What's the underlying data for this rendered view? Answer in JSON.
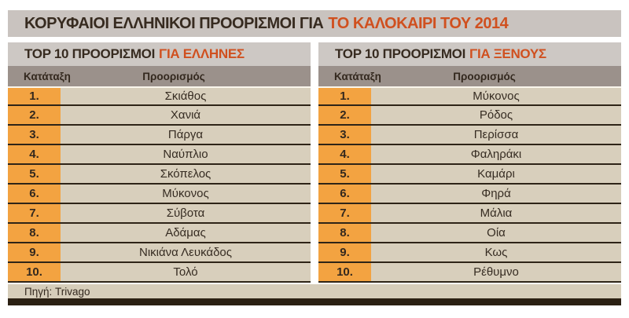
{
  "header": {
    "title_main": "ΚΟΡΥΦΑΙΟΙ ΕΛΛΗΝΙΚΟΙ ΠΡΟΟΡΙΣΜΟΙ ΓΙΑ",
    "title_accent": "ΤΟ ΚΑΛΟΚΑΙΡΙ ΤΟΥ 2014"
  },
  "tables": [
    {
      "heading_main": "TOP 10 ΠΡΟΟΡΙΣΜΟΙ",
      "heading_accent": "ΓΙΑ ΕΛΛΗΝΕΣ",
      "col_rank": "Κατάταξη",
      "col_destination": "Προορισμός",
      "rows": [
        {
          "rank": "1.",
          "destination": "Σκιάθος"
        },
        {
          "rank": "2.",
          "destination": "Χανιά"
        },
        {
          "rank": "3.",
          "destination": "Πάργα"
        },
        {
          "rank": "4.",
          "destination": "Ναύπλιο"
        },
        {
          "rank": "5.",
          "destination": "Σκόπελος"
        },
        {
          "rank": "6.",
          "destination": "Μύκονος"
        },
        {
          "rank": "7.",
          "destination": "Σύβοτα"
        },
        {
          "rank": "8.",
          "destination": "Αδάμας"
        },
        {
          "rank": "9.",
          "destination": "Νικιάνα Λευκάδος"
        },
        {
          "rank": "10.",
          "destination": "Τολό"
        }
      ]
    },
    {
      "heading_main": "TOP 10 ΠΡΟΟΡΙΣΜΟΙ",
      "heading_accent": "ΓΙΑ ΞΕΝΟΥΣ",
      "col_rank": "Κατάταξη",
      "col_destination": "Προορισμός",
      "rows": [
        {
          "rank": "1.",
          "destination": "Μύκονος"
        },
        {
          "rank": "2.",
          "destination": "Ρόδος"
        },
        {
          "rank": "3.",
          "destination": "Περίσσα"
        },
        {
          "rank": "4.",
          "destination": "Φαληράκι"
        },
        {
          "rank": "5.",
          "destination": "Καμάρι"
        },
        {
          "rank": "6.",
          "destination": "Φηρά"
        },
        {
          "rank": "7.",
          "destination": "Μάλια"
        },
        {
          "rank": "8.",
          "destination": "Οία"
        },
        {
          "rank": "9.",
          "destination": "Κως"
        },
        {
          "rank": "10.",
          "destination": "Ρέθυμνο"
        }
      ]
    }
  ],
  "footer": {
    "source": "Πηγή: Trivago"
  },
  "colors": {
    "accent": "#d0501f",
    "rank_orange": "#f3a341",
    "row_beige": "#d8cfbc",
    "column_header_taupe": "#9b918b",
    "title_bar_gray": "#c9c3bf",
    "separator_dark": "#2e2417",
    "bottom_bar_brown": "#2b2013"
  },
  "chart_data": {
    "type": "table",
    "title": "ΚΟΡΥΦΑΙΟΙ ΕΛΛΗΝΙΚΟΙ ΠΡΟΟΡΙΣΜΟΙ ΓΙΑ ΤΟ ΚΑΛΟΚΑΙΡΙ ΤΟΥ 2014",
    "source": "Πηγή: Trivago",
    "tables": [
      {
        "title": "TOP 10 ΠΡΟΟΡΙΣΜΟΙ ΓΙΑ ΕΛΛΗΝΕΣ",
        "columns": [
          "Κατάταξη",
          "Προορισμός"
        ],
        "rows": [
          [
            1,
            "Σκιάθος"
          ],
          [
            2,
            "Χανιά"
          ],
          [
            3,
            "Πάργα"
          ],
          [
            4,
            "Ναύπλιο"
          ],
          [
            5,
            "Σκόπελος"
          ],
          [
            6,
            "Μύκονος"
          ],
          [
            7,
            "Σύβοτα"
          ],
          [
            8,
            "Αδάμας"
          ],
          [
            9,
            "Νικιάνα Λευκάδος"
          ],
          [
            10,
            "Τολό"
          ]
        ]
      },
      {
        "title": "TOP 10 ΠΡΟΟΡΙΣΜΟΙ ΓΙΑ ΞΕΝΟΥΣ",
        "columns": [
          "Κατάταξη",
          "Προορισμός"
        ],
        "rows": [
          [
            1,
            "Μύκονος"
          ],
          [
            2,
            "Ρόδος"
          ],
          [
            3,
            "Περίσσα"
          ],
          [
            4,
            "Φαληράκι"
          ],
          [
            5,
            "Καμάρι"
          ],
          [
            6,
            "Φηρά"
          ],
          [
            7,
            "Μάλια"
          ],
          [
            8,
            "Οία"
          ],
          [
            9,
            "Κως"
          ],
          [
            10,
            "Ρέθυμνο"
          ]
        ]
      }
    ]
  }
}
